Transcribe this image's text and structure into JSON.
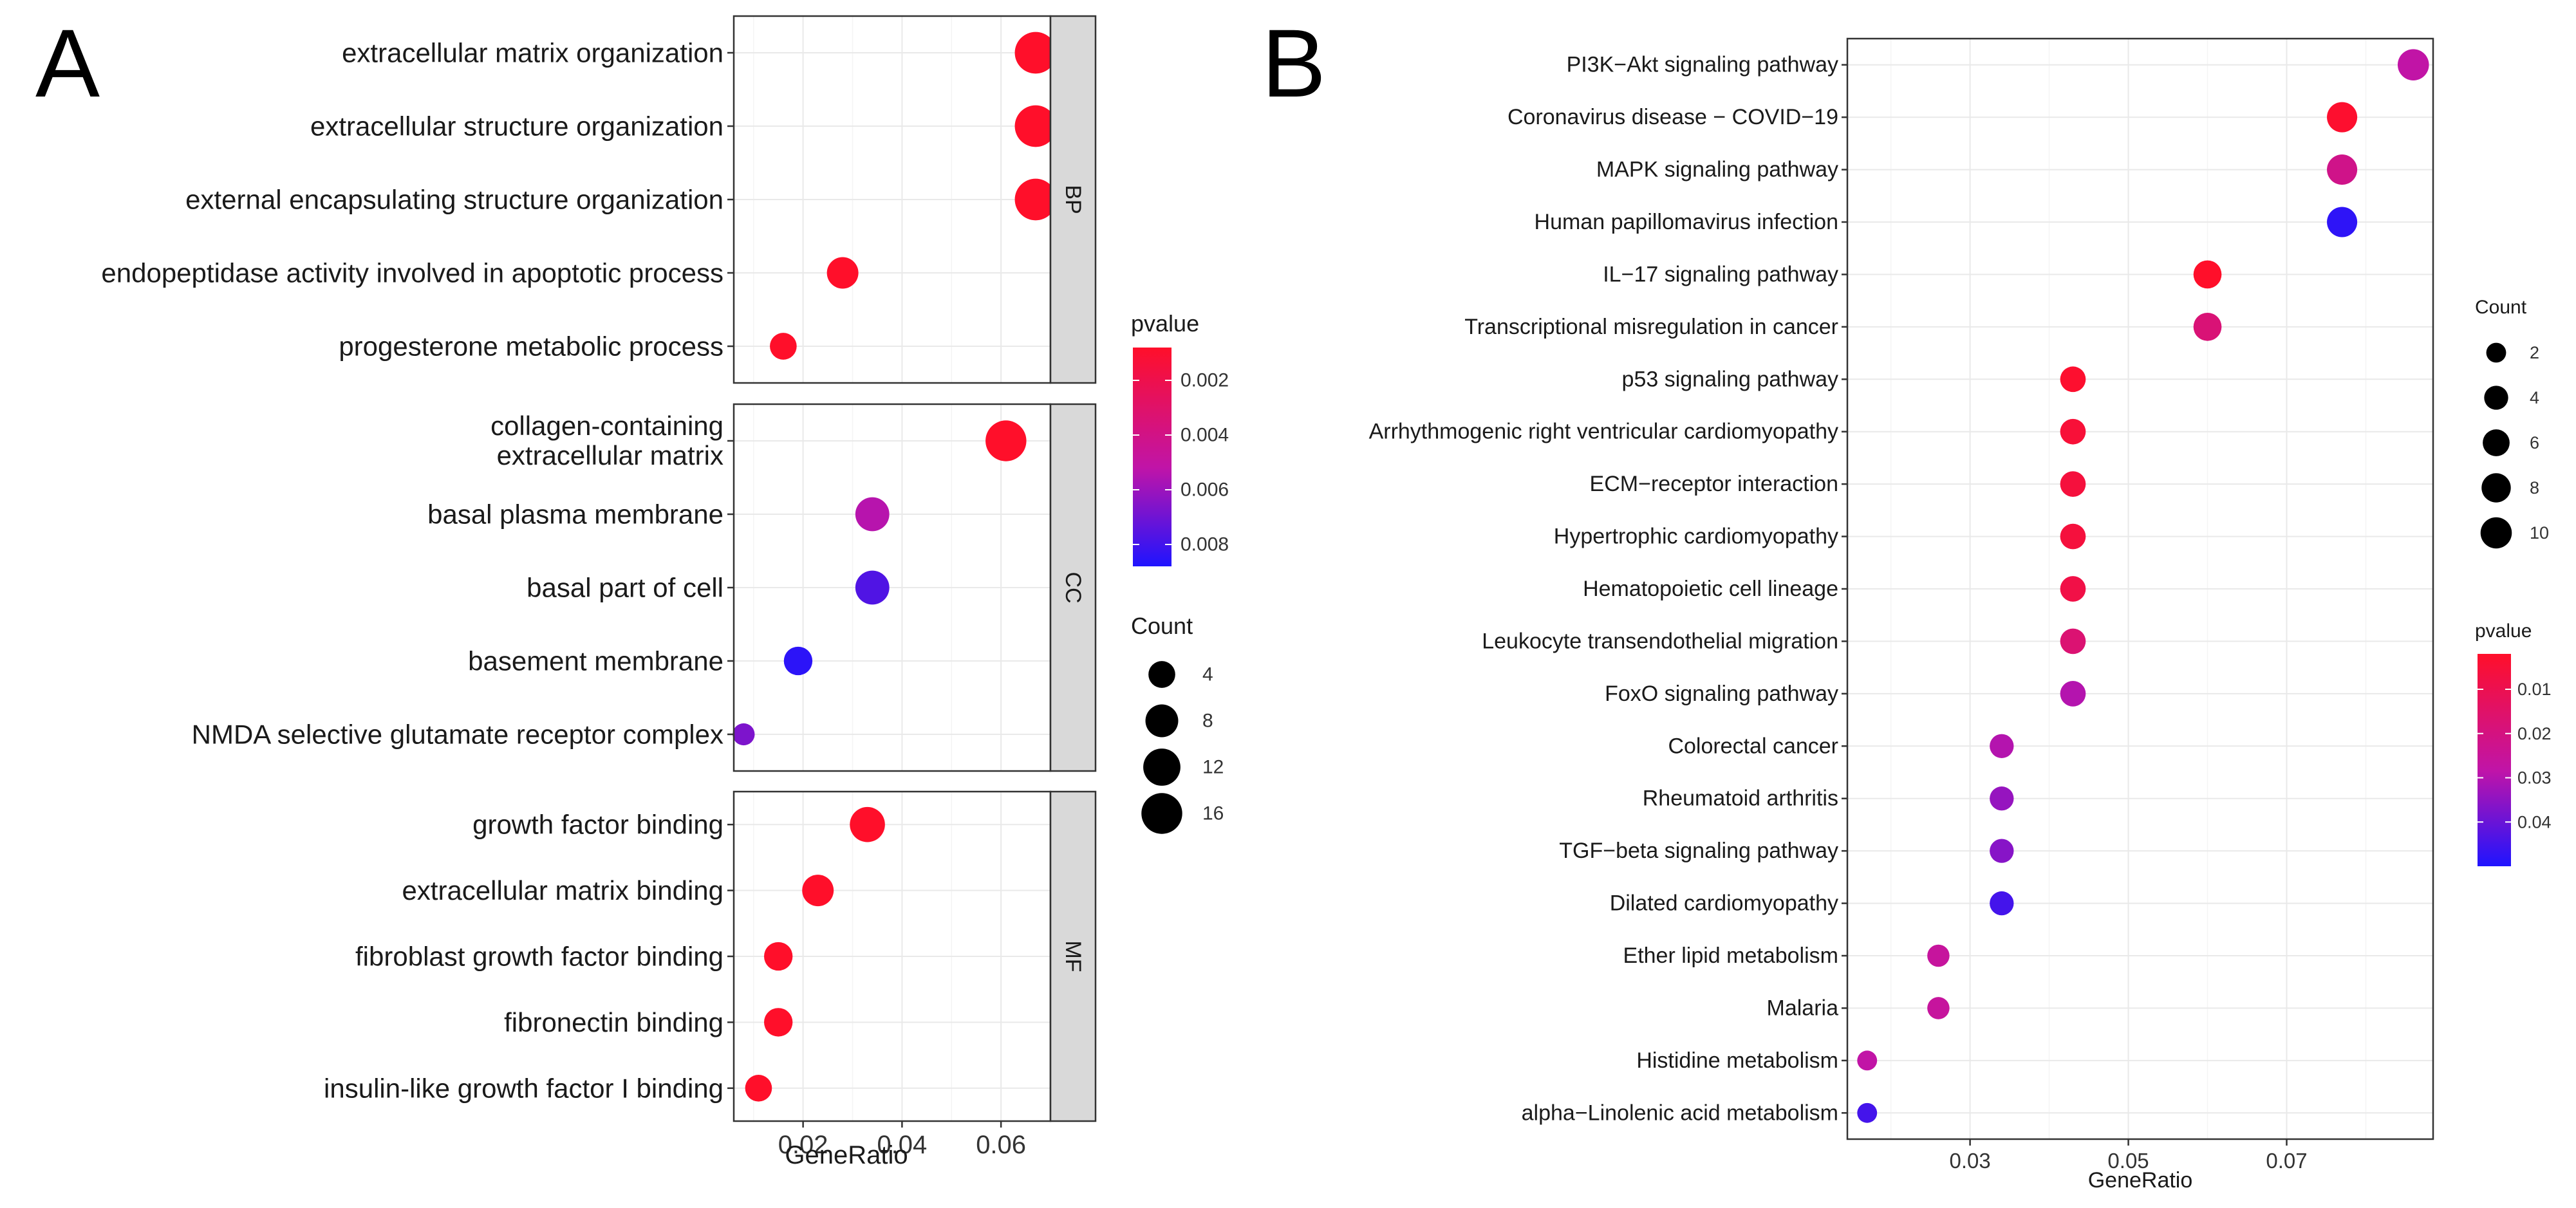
{
  "figure": {
    "panel_a_label": "A",
    "panel_b_label": "B"
  },
  "colors": {
    "high": "#ff0f2a",
    "low": "#1f14ff"
  },
  "chart_data": [
    {
      "type": "scatter",
      "panel": "A",
      "title": "",
      "xlabel": "GeneRatio",
      "ylabel": "",
      "xlim": [
        0.006,
        0.07
      ],
      "xticks": [
        0.02,
        0.04,
        0.06
      ],
      "xtick_labels": [
        "0.02",
        "0.04",
        "0.06"
      ],
      "color_range": [
        0.0008,
        0.0088
      ],
      "size_range": [
        1,
        18
      ],
      "facets": [
        {
          "name": "BP",
          "categories": [
            "extracellular matrix organization",
            "extracellular structure organization",
            "external encapsulating structure organization",
            "endopeptidase activity involved in apoptotic process",
            "progesterone metabolic process"
          ],
          "x": [
            0.067,
            0.067,
            0.067,
            0.028,
            0.016
          ],
          "pvalue": [
            0.0001,
            0.0001,
            0.0001,
            0.0002,
            0.0001
          ],
          "count": [
            17,
            17,
            17,
            7,
            4
          ]
        },
        {
          "name": "CC",
          "categories": [
            "collagen-containing\nextracellular matrix",
            "basal plasma membrane",
            "basal part of cell",
            "basement membrane",
            "NMDA selective glutamate receptor complex"
          ],
          "x": [
            0.061,
            0.034,
            0.034,
            0.019,
            0.008
          ],
          "pvalue": [
            0.0002,
            0.0054,
            0.0077,
            0.0085,
            0.0067
          ],
          "count": [
            16,
            9,
            9,
            5,
            2
          ]
        },
        {
          "name": "MF",
          "categories": [
            "growth factor binding",
            "extracellular matrix binding",
            "fibroblast growth factor binding",
            "fibronectin binding",
            "insulin-like growth factor I binding"
          ],
          "x": [
            0.033,
            0.023,
            0.015,
            0.015,
            0.011
          ],
          "pvalue": [
            0.0002,
            0.0003,
            0.0001,
            0.0002,
            0.0003
          ],
          "count": [
            10,
            7,
            5,
            5,
            4
          ]
        }
      ],
      "legend_color": {
        "title": "pvalue",
        "ticks": [
          0.002,
          0.004,
          0.006,
          0.008
        ],
        "labels": [
          "0.002",
          "0.004",
          "0.006",
          "0.008"
        ]
      },
      "legend_size": {
        "title": "Count",
        "values": [
          4,
          8,
          12,
          16
        ],
        "labels": [
          "4",
          "8",
          "12",
          "16"
        ]
      }
    },
    {
      "type": "scatter",
      "panel": "B",
      "title": "",
      "xlabel": "GeneRatio",
      "ylabel": "",
      "xlim": [
        0.0145,
        0.0885
      ],
      "xticks": [
        0.03,
        0.05,
        0.07
      ],
      "xtick_labels": [
        "0.03",
        "0.05",
        "0.07"
      ],
      "color_range": [
        0.002,
        0.05
      ],
      "size_range": [
        1,
        11
      ],
      "categories": [
        "PI3K−Akt signaling pathway",
        "Coronavirus disease − COVID−19",
        "MAPK signaling pathway",
        "Human papillomavirus infection",
        "IL−17 signaling pathway",
        "Transcriptional misregulation in cancer",
        "p53 signaling pathway",
        "Arrhythmogenic right ventricular cardiomyopathy",
        "ECM−receptor interaction",
        "Hypertrophic cardiomyopathy",
        "Hematopoietic cell lineage",
        "Leukocyte transendothelial migration",
        "FoxO signaling pathway",
        "Colorectal cancer",
        "Rheumatoid arthritis",
        "TGF−beta signaling pathway",
        "Dilated cardiomyopathy",
        "Ether lipid metabolism",
        "Malaria",
        "Histidine metabolism",
        "alpha−Linolenic acid metabolism"
      ],
      "x": [
        0.086,
        0.077,
        0.077,
        0.077,
        0.06,
        0.06,
        0.043,
        0.043,
        0.043,
        0.043,
        0.043,
        0.043,
        0.043,
        0.034,
        0.034,
        0.034,
        0.034,
        0.026,
        0.026,
        0.017,
        0.017
      ],
      "pvalue": [
        0.028,
        0.003,
        0.022,
        0.048,
        0.002,
        0.018,
        0.003,
        0.005,
        0.006,
        0.006,
        0.008,
        0.017,
        0.03,
        0.03,
        0.034,
        0.036,
        0.045,
        0.026,
        0.026,
        0.028,
        0.045
      ],
      "count": [
        10,
        9,
        9,
        9,
        7,
        7,
        5,
        5,
        5,
        5,
        5,
        5,
        5,
        4,
        4,
        4,
        4,
        3,
        3,
        2,
        2
      ],
      "legend_color": {
        "title": "pvalue",
        "ticks": [
          0.01,
          0.02,
          0.03,
          0.04
        ],
        "labels": [
          "0.01",
          "0.02",
          "0.03",
          "0.04"
        ]
      },
      "legend_size": {
        "title": "Count",
        "values": [
          2,
          4,
          6,
          8,
          10
        ],
        "labels": [
          "2",
          "4",
          "6",
          "8",
          "10"
        ]
      }
    }
  ]
}
